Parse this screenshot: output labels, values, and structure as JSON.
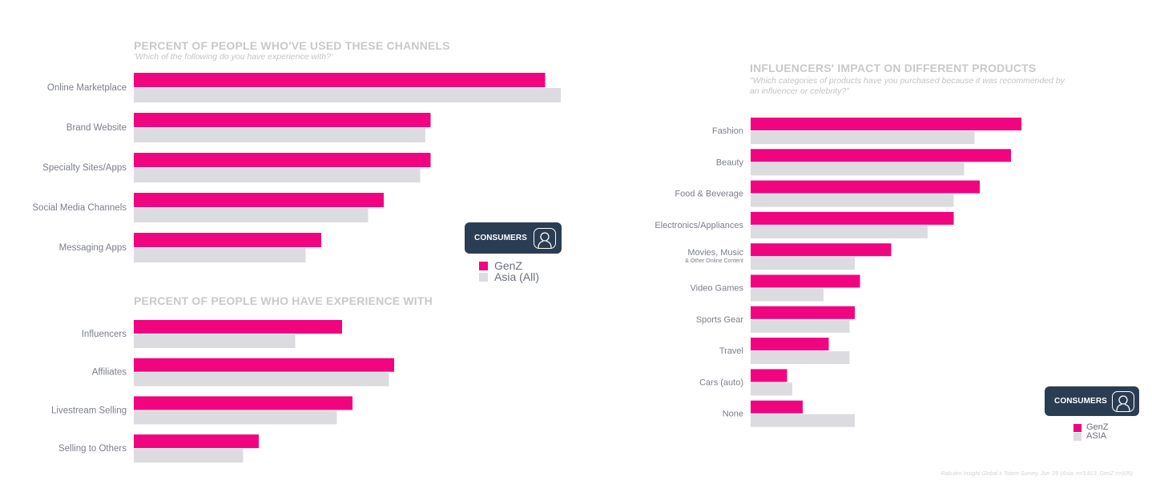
{
  "colors": {
    "genz": "#f0047f",
    "asia": "#dcdce0",
    "label": "#7c7f8b",
    "badge": "#2b3d52"
  },
  "chart_data": [
    {
      "type": "bar",
      "orientation": "horizontal",
      "title": "PERCENT OF PEOPLE WHO'VE USED THESE CHANNELS",
      "subtitle": "'Which of the following do you have experience with?'",
      "categories": [
        "Online Marketplace",
        "Brand Website",
        "Specialty Sites/Apps",
        "Social Media Channels",
        "Messaging Apps"
      ],
      "series": [
        {
          "name": "GenZ",
          "values": [
            79,
            57,
            57,
            48,
            36
          ]
        },
        {
          "name": "Asia (All)",
          "values": [
            82,
            56,
            55,
            45,
            33
          ]
        }
      ],
      "xlabel": "",
      "ylabel": "",
      "xlim": [
        0,
        100
      ],
      "grid": false,
      "legend": "right"
    },
    {
      "type": "bar",
      "orientation": "horizontal",
      "title": "PERCENT OF PEOPLE WHO HAVE EXPERIENCE WITH",
      "categories": [
        "Influencers",
        "Affiliates",
        "Livestream Selling",
        "Selling to Others"
      ],
      "series": [
        {
          "name": "GenZ",
          "values": [
            40,
            50,
            42,
            24
          ]
        },
        {
          "name": "Asia (All)",
          "values": [
            31,
            49,
            39,
            21
          ]
        }
      ],
      "xlabel": "",
      "ylabel": "",
      "xlim": [
        0,
        100
      ],
      "grid": false
    },
    {
      "type": "bar",
      "orientation": "horizontal",
      "title": "INFLUENCERS' IMPACT ON DIFFERENT PRODUCTS",
      "subtitle_lines": [
        "\"Which categories of products have you purchased because it was recommended by",
        "an influencer or celebrity?\""
      ],
      "categories": [
        "Fashion",
        "Beauty",
        "Food & Beverage",
        "Electronics/Appliances",
        "Movies, Music",
        "Video Games",
        "Sports Gear",
        "Travel",
        "Cars (auto)",
        "None"
      ],
      "category_sublabels": {
        "Movies, Music": "& Other Online Content"
      },
      "series": [
        {
          "name": "GenZ",
          "values": [
            52,
            50,
            44,
            39,
            27,
            21,
            20,
            15,
            7,
            10
          ]
        },
        {
          "name": "ASIA",
          "values": [
            43,
            41,
            39,
            34,
            20,
            14,
            19,
            19,
            8,
            20
          ]
        }
      ],
      "xlabel": "",
      "ylabel": "",
      "xlim": [
        0,
        100
      ],
      "grid": false,
      "legend": "bottom-right"
    }
  ],
  "badges": {
    "left": {
      "label": "CONSUMERS",
      "icon": "user-icon",
      "legend": [
        "GenZ",
        "Asia (All)"
      ]
    },
    "right": {
      "label": "CONSUMERS",
      "icon": "user-icon",
      "legend": [
        "GenZ",
        "ASIA"
      ]
    }
  },
  "source": "Rakuten Insight Global x Totem Survey, Jun '25 (Asia: n=3,813, GenZ n=935)"
}
